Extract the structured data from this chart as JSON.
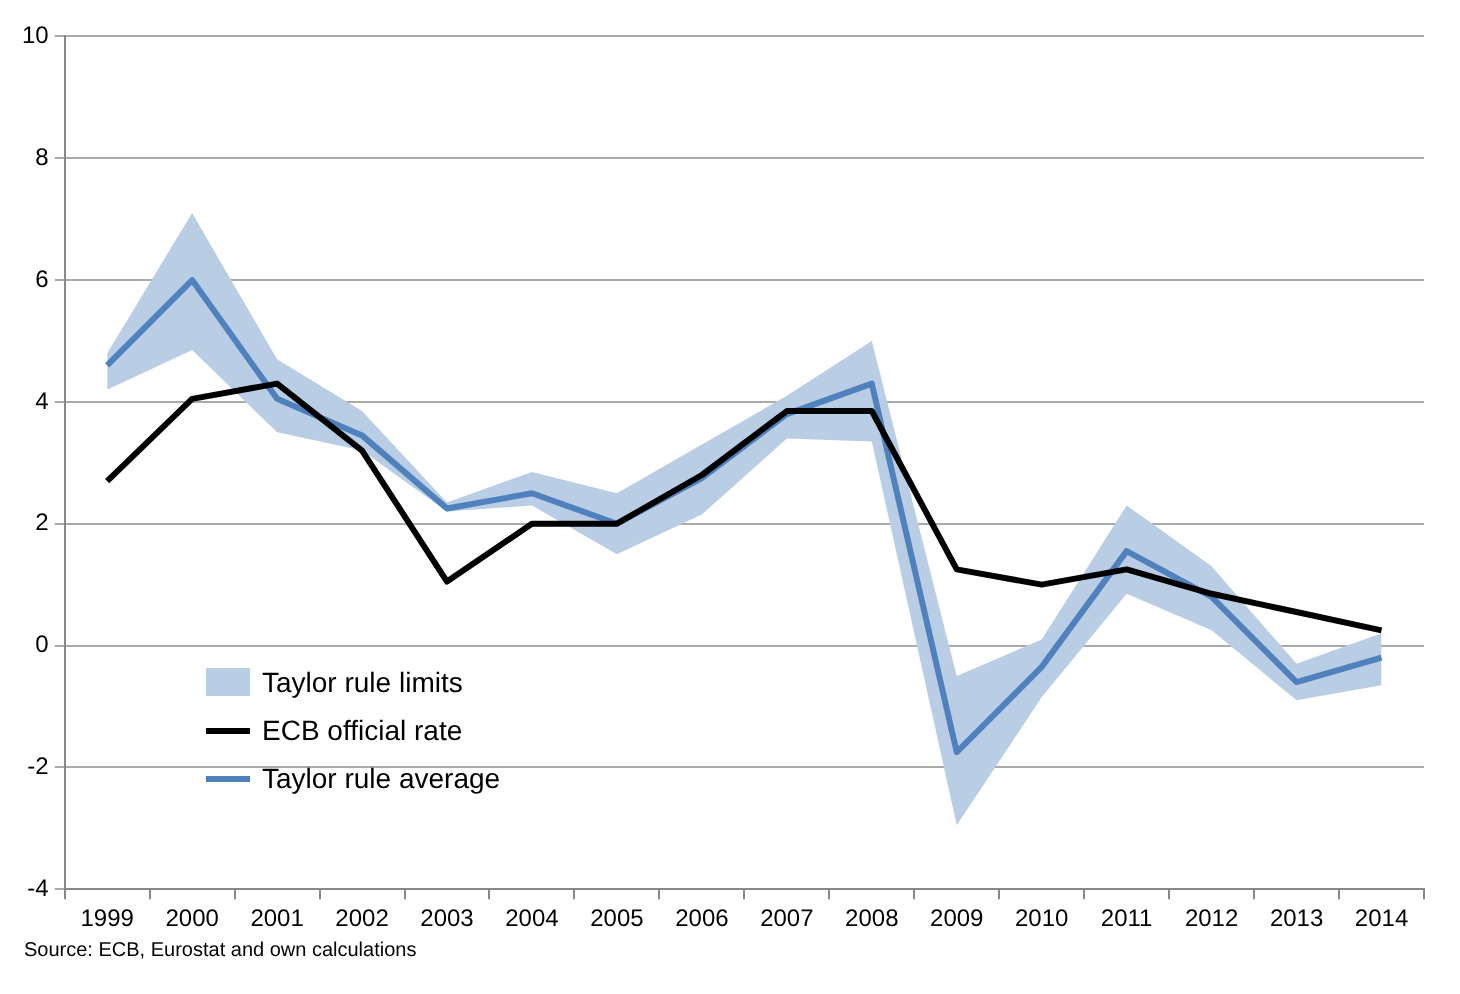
{
  "chart_data": {
    "type": "line",
    "categories": [
      "1999",
      "2000",
      "2001",
      "2002",
      "2003",
      "2004",
      "2005",
      "2006",
      "2007",
      "2008",
      "2009",
      "2010",
      "2011",
      "2012",
      "2013",
      "2014"
    ],
    "series": [
      {
        "name": "Taylor rule limits",
        "type": "area",
        "color": "#b9cde5",
        "values": [
          null,
          null,
          null,
          null,
          null,
          null,
          null,
          null,
          null,
          null,
          null,
          null,
          null,
          null,
          null,
          null
        ],
        "lower": [
          4.2,
          4.85,
          3.5,
          3.2,
          2.2,
          2.3,
          1.5,
          2.15,
          3.4,
          3.35,
          -2.95,
          -0.85,
          0.85,
          0.25,
          -0.9,
          -0.65
        ],
        "upper": [
          4.8,
          7.1,
          4.7,
          3.85,
          2.35,
          2.85,
          2.5,
          3.3,
          4.1,
          5.0,
          -0.5,
          0.1,
          2.3,
          1.3,
          -0.3,
          0.2
        ]
      },
      {
        "name": "ECB official rate",
        "color": "#000000",
        "values": [
          2.7,
          4.05,
          4.3,
          3.2,
          1.05,
          2.0,
          2.0,
          2.8,
          3.85,
          3.85,
          1.25,
          1.0,
          1.25,
          0.85,
          0.55,
          0.25
        ]
      },
      {
        "name": "Taylor rule average",
        "color": "#4f81bd",
        "values": [
          4.6,
          6.0,
          4.05,
          3.45,
          2.25,
          2.5,
          2.0,
          2.75,
          3.8,
          4.3,
          -1.75,
          -0.35,
          1.55,
          0.8,
          -0.6,
          -0.2
        ]
      }
    ],
    "ylim": [
      -4,
      10
    ],
    "yticks": [
      -4,
      -2,
      0,
      2,
      4,
      6,
      8,
      10
    ],
    "grid": "y",
    "legend": "bottom left",
    "marker": "none",
    "line_style": "solid",
    "annotations": [
      "Source: ECB, Eurostat and own calculations"
    ]
  }
}
